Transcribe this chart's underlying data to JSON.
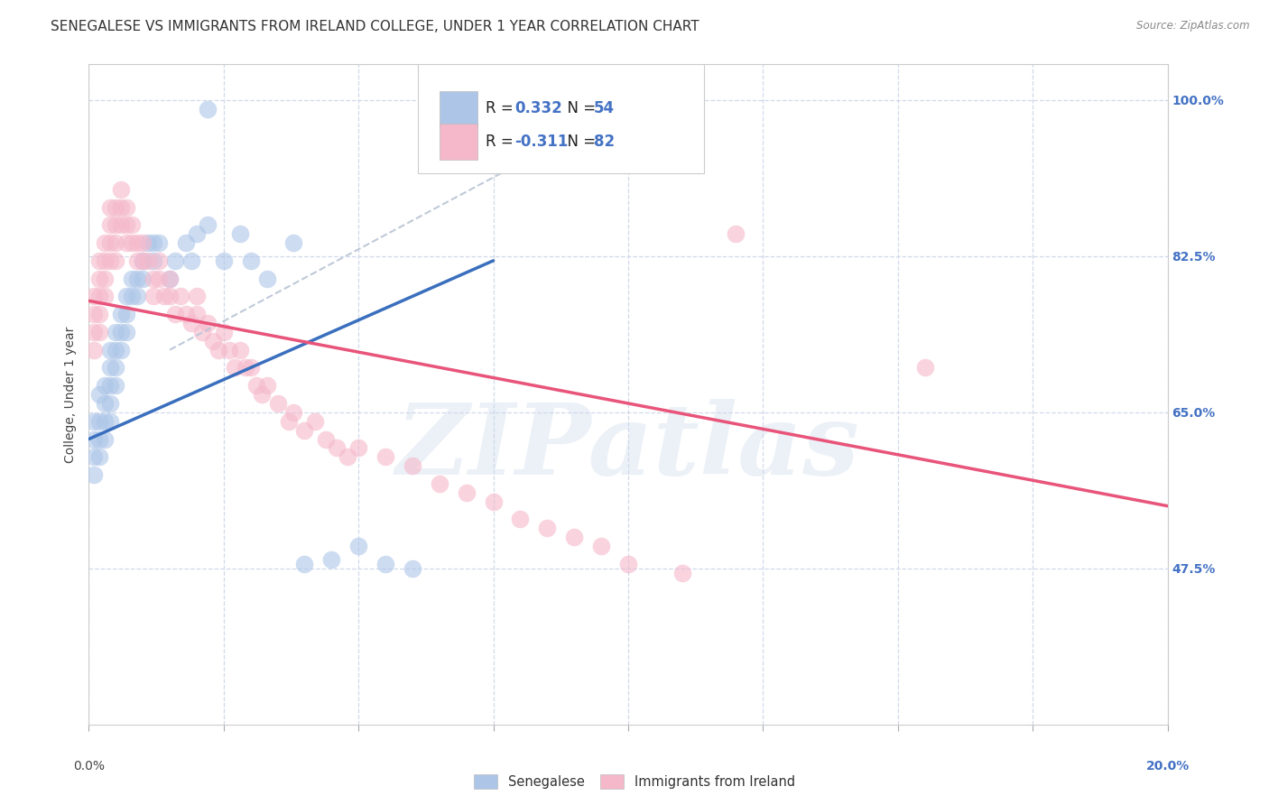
{
  "title": "SENEGALESE VS IMMIGRANTS FROM IRELAND COLLEGE, UNDER 1 YEAR CORRELATION CHART",
  "source": "Source: ZipAtlas.com",
  "ylabel": "College, Under 1 year",
  "xlim": [
    0.0,
    0.2
  ],
  "ylim": [
    0.3,
    1.04
  ],
  "yticks": [
    0.475,
    0.65,
    0.825,
    1.0
  ],
  "yticklabels_right": [
    "47.5%",
    "65.0%",
    "82.5%",
    "100.0%"
  ],
  "xtick_positions": [
    0.0,
    0.025,
    0.05,
    0.075,
    0.1,
    0.125,
    0.15,
    0.175,
    0.2
  ],
  "blue_color": "#adc6e8",
  "pink_color": "#f5b8cb",
  "blue_line_color": "#3a6fbe",
  "pink_line_color": "#e8547a",
  "dashed_line_color": "#b8c4d4",
  "blue_line_x": [
    0.0,
    0.075
  ],
  "blue_line_y": [
    0.62,
    0.82
  ],
  "pink_line_x": [
    0.0,
    0.2
  ],
  "pink_line_y": [
    0.775,
    0.545
  ],
  "dash_line_x": [
    0.015,
    0.105
  ],
  "dash_line_y": [
    0.72,
    1.01
  ],
  "watermark": "ZIPatlas",
  "background_color": "#ffffff",
  "grid_color": "#d0d8ea",
  "title_fontsize": 11,
  "axis_label_fontsize": 10,
  "tick_fontsize": 10,
  "right_ytick_color": "#4472c4",
  "blue_x": [
    0.001,
    0.001,
    0.001,
    0.001,
    0.002,
    0.002,
    0.002,
    0.002,
    0.003,
    0.003,
    0.003,
    0.003,
    0.004,
    0.004,
    0.004,
    0.004,
    0.004,
    0.005,
    0.005,
    0.005,
    0.005,
    0.006,
    0.006,
    0.006,
    0.007,
    0.007,
    0.007,
    0.008,
    0.008,
    0.009,
    0.009,
    0.01,
    0.01,
    0.011,
    0.012,
    0.012,
    0.013,
    0.015,
    0.016,
    0.018,
    0.019,
    0.02,
    0.022,
    0.025,
    0.028,
    0.03,
    0.033,
    0.038,
    0.04,
    0.045,
    0.05,
    0.055,
    0.06,
    0.022
  ],
  "blue_y": [
    0.64,
    0.62,
    0.6,
    0.58,
    0.67,
    0.64,
    0.62,
    0.6,
    0.68,
    0.66,
    0.64,
    0.62,
    0.72,
    0.7,
    0.68,
    0.66,
    0.64,
    0.74,
    0.72,
    0.7,
    0.68,
    0.76,
    0.74,
    0.72,
    0.78,
    0.76,
    0.74,
    0.8,
    0.78,
    0.8,
    0.78,
    0.82,
    0.8,
    0.84,
    0.84,
    0.82,
    0.84,
    0.8,
    0.82,
    0.84,
    0.82,
    0.85,
    0.86,
    0.82,
    0.85,
    0.82,
    0.8,
    0.84,
    0.48,
    0.485,
    0.5,
    0.48,
    0.475,
    0.99
  ],
  "pink_x": [
    0.001,
    0.001,
    0.001,
    0.001,
    0.002,
    0.002,
    0.002,
    0.002,
    0.002,
    0.003,
    0.003,
    0.003,
    0.003,
    0.004,
    0.004,
    0.004,
    0.004,
    0.005,
    0.005,
    0.005,
    0.005,
    0.006,
    0.006,
    0.006,
    0.007,
    0.007,
    0.007,
    0.008,
    0.008,
    0.009,
    0.009,
    0.01,
    0.01,
    0.011,
    0.012,
    0.012,
    0.013,
    0.013,
    0.014,
    0.015,
    0.015,
    0.016,
    0.017,
    0.018,
    0.019,
    0.02,
    0.02,
    0.021,
    0.022,
    0.023,
    0.024,
    0.025,
    0.026,
    0.027,
    0.028,
    0.029,
    0.03,
    0.031,
    0.032,
    0.033,
    0.035,
    0.037,
    0.038,
    0.04,
    0.042,
    0.044,
    0.046,
    0.048,
    0.05,
    0.055,
    0.06,
    0.065,
    0.07,
    0.075,
    0.08,
    0.085,
    0.09,
    0.095,
    0.1,
    0.11,
    0.155,
    0.12
  ],
  "pink_y": [
    0.78,
    0.76,
    0.74,
    0.72,
    0.82,
    0.8,
    0.78,
    0.76,
    0.74,
    0.84,
    0.82,
    0.8,
    0.78,
    0.88,
    0.86,
    0.84,
    0.82,
    0.88,
    0.86,
    0.84,
    0.82,
    0.9,
    0.88,
    0.86,
    0.88,
    0.86,
    0.84,
    0.86,
    0.84,
    0.84,
    0.82,
    0.84,
    0.82,
    0.82,
    0.8,
    0.78,
    0.82,
    0.8,
    0.78,
    0.8,
    0.78,
    0.76,
    0.78,
    0.76,
    0.75,
    0.78,
    0.76,
    0.74,
    0.75,
    0.73,
    0.72,
    0.74,
    0.72,
    0.7,
    0.72,
    0.7,
    0.7,
    0.68,
    0.67,
    0.68,
    0.66,
    0.64,
    0.65,
    0.63,
    0.64,
    0.62,
    0.61,
    0.6,
    0.61,
    0.6,
    0.59,
    0.57,
    0.56,
    0.55,
    0.53,
    0.52,
    0.51,
    0.5,
    0.48,
    0.47,
    0.7,
    0.85
  ],
  "legend_entries": [
    {
      "label": "R = 0.332  N = 54",
      "color": "#adc6e8"
    },
    {
      "label": "R = -0.311  N = 82",
      "color": "#f5b8cb"
    }
  ],
  "bottom_legend": [
    {
      "label": "Senegalese",
      "color": "#adc6e8"
    },
    {
      "label": "Immigrants from Ireland",
      "color": "#f5b8cb"
    }
  ]
}
